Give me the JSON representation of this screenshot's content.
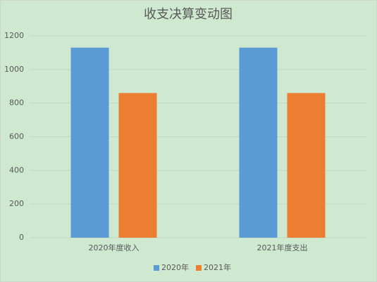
{
  "chart_data": {
    "type": "bar",
    "title": "收支决算变动图",
    "categories": [
      "2020年度收入",
      "2021年度支出"
    ],
    "series": [
      {
        "name": "2020年",
        "color": "#5b9bd5",
        "values": [
          1130,
          1130
        ]
      },
      {
        "name": "2021年",
        "color": "#ed7d31",
        "values": [
          860,
          860
        ]
      }
    ],
    "ylim": [
      0,
      1200
    ],
    "yticks": [
      0,
      200,
      400,
      600,
      800,
      1000,
      1200
    ],
    "grid": true,
    "legend": "bottom"
  }
}
